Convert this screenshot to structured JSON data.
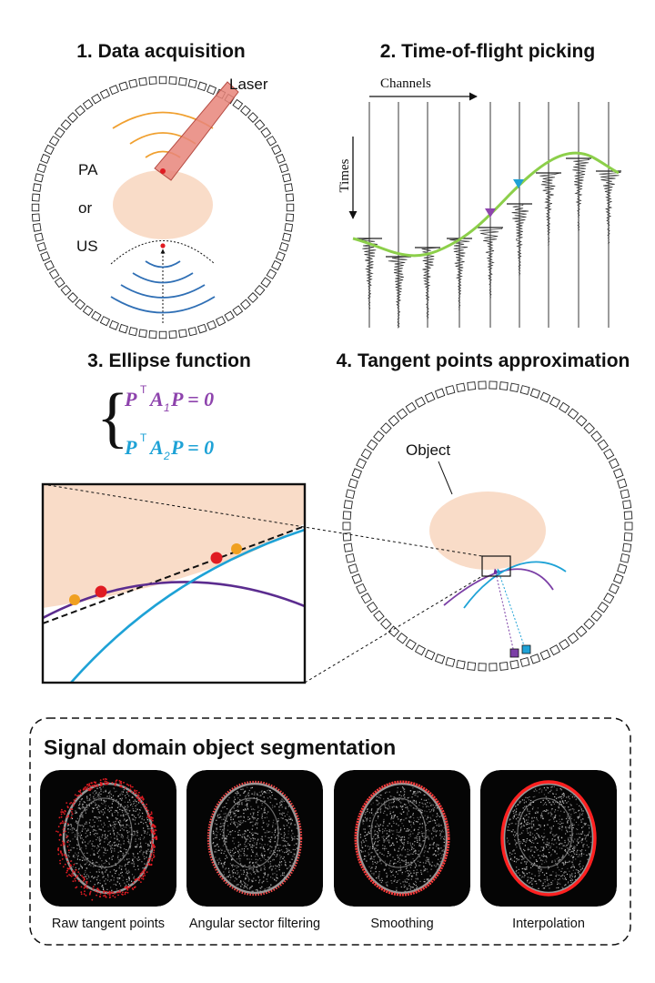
{
  "panel1": {
    "title": "1. Data acquisition",
    "laser_label": "Laser",
    "pa_label": "PA",
    "or_label": "or",
    "us_label": "US"
  },
  "panel2": {
    "title": "2. Time-of-flight picking",
    "channels_label": "Channels",
    "times_label": "Times"
  },
  "panel3": {
    "title": "3. Ellipse function",
    "eq1": {
      "p": "P",
      "t": "T",
      "a": "A",
      "sub": "1",
      "rest": "P = 0"
    },
    "eq2": {
      "p": "P",
      "t": "T",
      "a": "A",
      "sub": "2",
      "rest": "P = 0"
    }
  },
  "panel4": {
    "title": "4. Tangent points approximation",
    "object_label": "Object"
  },
  "segmentation": {
    "title": "Signal domain object segmentation",
    "captions": [
      "Raw tangent points",
      "Angular sector filtering",
      "Smoothing",
      "Interpolation"
    ]
  },
  "colors": {
    "purple": "#6a2a9c",
    "cyan": "#1ea2d6",
    "green": "#8ccf4a",
    "orange": "#f0a020",
    "red": "#e01b22",
    "object": "#f9dcc8",
    "laser": "#e8857a",
    "pa_wave": "#f0a030",
    "us_wave": "#2f6fb5"
  }
}
